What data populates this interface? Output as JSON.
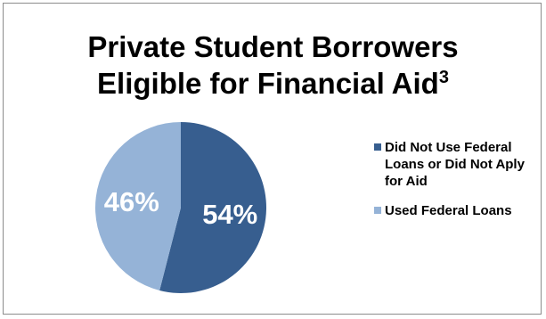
{
  "title": {
    "line1": "Private Student Borrowers",
    "line2": "Eligible for Financial Aid",
    "superscript": "3"
  },
  "chart_data": {
    "type": "pie",
    "title": "Private Student Borrowers Eligible for Financial Aid3",
    "categories": [
      "Did Not Use Federal Loans or Did Not Aply for Aid",
      "Used Federal Loans"
    ],
    "values": [
      54,
      46
    ],
    "data_labels": [
      "54%",
      "46%"
    ],
    "colors": [
      "#375e8f",
      "#95b3d7"
    ],
    "legend_position": "right"
  }
}
